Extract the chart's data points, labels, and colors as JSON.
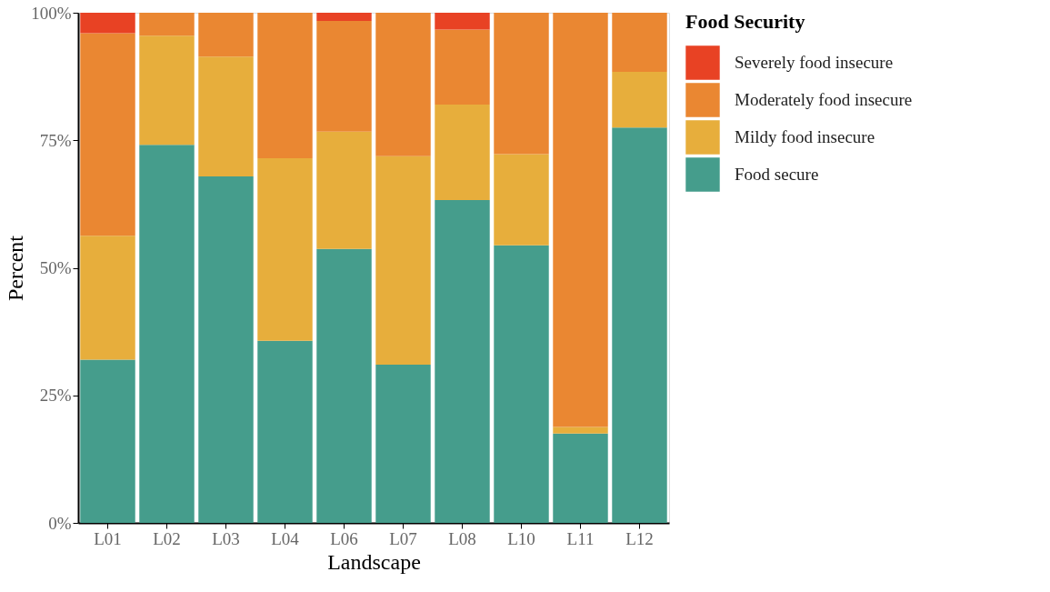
{
  "chart_data": {
    "type": "bar",
    "stacked": true,
    "xlabel": "Landscape",
    "ylabel": "Percent",
    "legend_title": "Food Security",
    "legend": "right",
    "categories": [
      "L01",
      "L02",
      "L03",
      "L04",
      "L06",
      "L07",
      "L08",
      "L10",
      "L11",
      "L12"
    ],
    "series": [
      {
        "name": "Food secure",
        "color": "#459d8c",
        "values": [
          32.0,
          74.1,
          67.9,
          35.7,
          53.7,
          31.0,
          63.3,
          54.4,
          17.5,
          77.5
        ]
      },
      {
        "name": "Mildy food insecure",
        "color": "#e7ae3c",
        "values": [
          24.3,
          21.4,
          23.5,
          35.8,
          23.0,
          40.9,
          18.7,
          17.9,
          1.3,
          10.9
        ]
      },
      {
        "name": "Moderately food insecure",
        "color": "#ea8732",
        "values": [
          39.7,
          4.5,
          8.6,
          28.5,
          21.7,
          28.1,
          14.7,
          27.7,
          81.2,
          11.6
        ]
      },
      {
        "name": "Severely food insecure",
        "color": "#e84224",
        "values": [
          4.0,
          0,
          0,
          0,
          1.6,
          0,
          3.3,
          0,
          0,
          0
        ]
      }
    ],
    "ylim": [
      0,
      100
    ],
    "yticks": [
      {
        "value": 0,
        "label": "0%"
      },
      {
        "value": 25,
        "label": "25%"
      },
      {
        "value": 50,
        "label": "50%"
      },
      {
        "value": 75,
        "label": "75%"
      },
      {
        "value": 100,
        "label": "100%"
      }
    ],
    "grid": false
  }
}
